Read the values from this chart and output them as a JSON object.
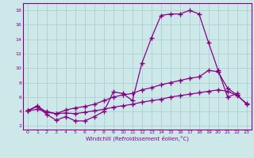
{
  "bg_color": "#cce8e8",
  "grid_color": "#aacccc",
  "line_color": "#880088",
  "xlabel": "Windchill (Refroidissement éolien,°C)",
  "xlim": [
    -0.5,
    23.5
  ],
  "ylim": [
    1.5,
    19.0
  ],
  "xticks": [
    0,
    1,
    2,
    3,
    4,
    5,
    6,
    7,
    8,
    9,
    10,
    11,
    12,
    13,
    14,
    15,
    16,
    17,
    18,
    19,
    20,
    21,
    22,
    23
  ],
  "yticks": [
    2,
    4,
    6,
    8,
    10,
    12,
    14,
    16,
    18
  ],
  "line1_x": [
    0,
    1,
    2,
    3,
    4,
    5,
    6,
    7,
    8,
    9,
    10,
    11,
    12,
    13,
    14,
    15,
    16,
    17,
    18,
    19,
    20,
    21,
    22
  ],
  "line1_y": [
    4.1,
    4.7,
    3.6,
    2.8,
    3.3,
    2.7,
    2.7,
    3.3,
    4.0,
    6.7,
    6.5,
    5.5,
    10.7,
    14.2,
    17.3,
    17.5,
    17.5,
    18.0,
    17.5,
    13.5,
    9.7,
    6.0,
    6.5
  ],
  "line2_x": [
    0,
    1,
    2,
    3,
    4,
    5,
    6,
    7,
    8,
    9,
    10,
    11,
    12,
    13,
    14,
    15,
    16,
    17,
    18,
    19,
    20,
    21,
    22,
    23
  ],
  "line2_y": [
    4.1,
    4.8,
    3.9,
    3.7,
    4.2,
    4.5,
    4.7,
    5.0,
    5.5,
    6.0,
    6.3,
    6.5,
    7.0,
    7.3,
    7.7,
    8.0,
    8.3,
    8.6,
    8.8,
    9.7,
    9.5,
    7.2,
    6.3,
    5.0
  ],
  "line3_x": [
    0,
    1,
    2,
    3,
    4,
    5,
    6,
    7,
    8,
    9,
    10,
    11,
    12,
    13,
    14,
    15,
    16,
    17,
    18,
    19,
    20,
    21,
    22,
    23
  ],
  "line3_y": [
    4.1,
    4.3,
    4.0,
    3.7,
    3.8,
    3.7,
    3.9,
    4.1,
    4.3,
    4.6,
    4.8,
    5.0,
    5.3,
    5.5,
    5.7,
    6.0,
    6.2,
    6.4,
    6.6,
    6.8,
    7.0,
    6.8,
    6.2,
    5.1
  ]
}
